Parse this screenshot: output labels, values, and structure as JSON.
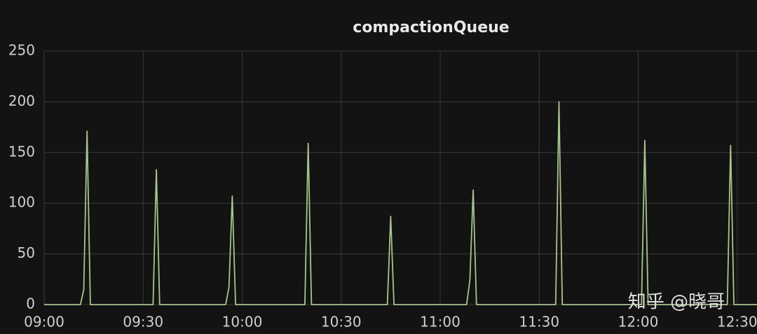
{
  "chart_data": {
    "type": "line",
    "title": "compactionQueue",
    "x": [
      "09:00",
      "09:11",
      "09:12",
      "09:13",
      "09:14",
      "09:33",
      "09:34",
      "09:35",
      "09:55",
      "09:56",
      "09:57",
      "09:58",
      "10:19",
      "10:20",
      "10:21",
      "10:44",
      "10:45",
      "10:46",
      "11:08",
      "11:09",
      "11:10",
      "11:11",
      "11:35",
      "11:36",
      "11:37",
      "12:01",
      "12:02",
      "12:03",
      "12:27",
      "12:28",
      "12:29",
      "12:36"
    ],
    "series": [
      {
        "color": "#a9c48e",
        "values": [
          0,
          0,
          15,
          171,
          0,
          0,
          133,
          0,
          0,
          17,
          107,
          0,
          0,
          159,
          0,
          0,
          87,
          0,
          0,
          24,
          113,
          0,
          0,
          200,
          0,
          0,
          162,
          0,
          0,
          157,
          0,
          0
        ]
      }
    ],
    "xlim": [
      "09:00",
      "12:36"
    ],
    "xticks": [
      "09:00",
      "09:30",
      "10:00",
      "10:30",
      "11:00",
      "11:30",
      "12:00",
      "12:30"
    ],
    "ylim": [
      0,
      250
    ],
    "yticks": [
      0,
      50,
      100,
      150,
      200,
      250
    ],
    "grid": true,
    "watermark": "知乎 @晓哥"
  }
}
